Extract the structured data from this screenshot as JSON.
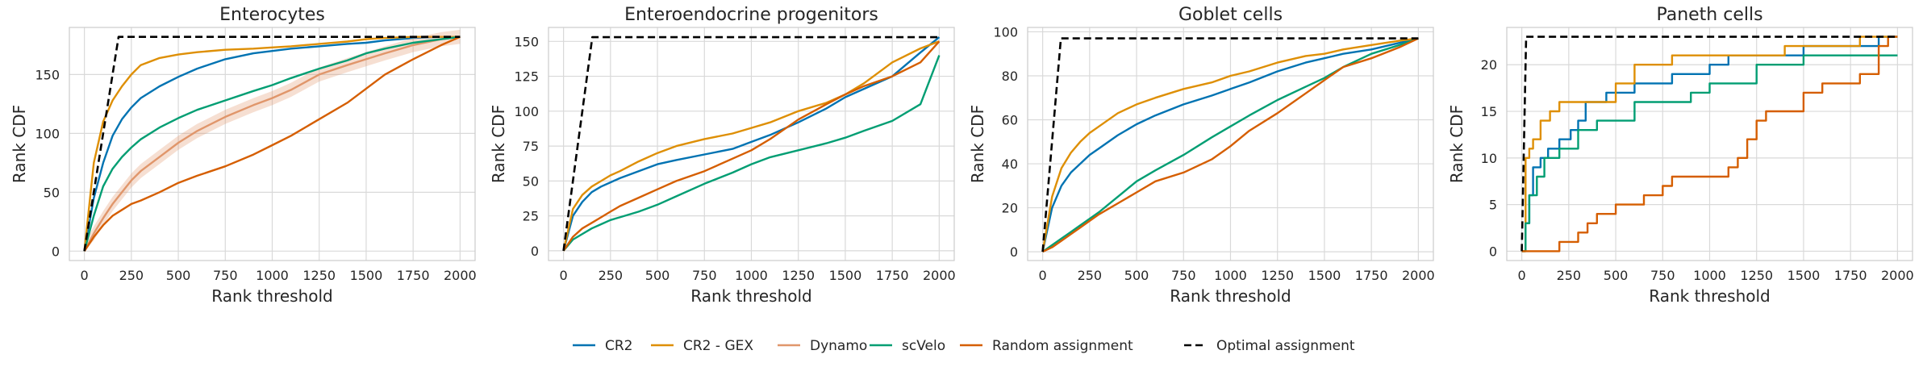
{
  "figure": {
    "xlabel": "Rank threshold",
    "ylabel": "Rank CDF"
  },
  "legend": {
    "placement": "bottom-center",
    "entries": [
      {
        "name": "CR2",
        "color": "#0173b2",
        "dashed": false
      },
      {
        "name": "CR2 - GEX",
        "color": "#de8f05",
        "dashed": false
      },
      {
        "name": "Dynamo",
        "color": "#e0966b",
        "dashed": false
      },
      {
        "name": "scVelo",
        "color": "#029e73",
        "dashed": false
      },
      {
        "name": "Random assignment",
        "color": "#d55e00",
        "dashed": false
      },
      {
        "name": "Optimal assignment",
        "color": "#000000",
        "dashed": true
      }
    ]
  },
  "chart_data": [
    {
      "type": "line",
      "title": "Enterocytes",
      "xlabel": "Rank threshold",
      "ylabel": "Rank CDF",
      "xlim": [
        -80,
        2080
      ],
      "ylim": [
        -8,
        190
      ],
      "xticks": [
        "0",
        "250",
        "500",
        "750",
        "1000",
        "1250",
        "1500",
        "1750",
        "2000"
      ],
      "xtick_values": [
        0,
        250,
        500,
        750,
        1000,
        1250,
        1500,
        1750,
        2000
      ],
      "yticks": [
        "0",
        "50",
        "100",
        "150"
      ],
      "ytick_values": [
        0,
        50,
        100,
        150
      ],
      "grid": true,
      "series": [
        {
          "name": "CR2",
          "color": "#0173b2",
          "dashed": false,
          "x": [
            0,
            50,
            100,
            150,
            200,
            250,
            300,
            400,
            500,
            600,
            750,
            900,
            1000,
            1100,
            1250,
            1400,
            1500,
            1600,
            1750,
            1900,
            2000
          ],
          "y": [
            0,
            45,
            75,
            98,
            112,
            122,
            130,
            140,
            148,
            155,
            163,
            168,
            170,
            172,
            174,
            176,
            177,
            179,
            181,
            182,
            182
          ]
        },
        {
          "name": "CR2 - GEX",
          "color": "#de8f05",
          "dashed": false,
          "x": [
            0,
            50,
            100,
            150,
            200,
            250,
            300,
            400,
            500,
            600,
            750,
            900,
            1000,
            1100,
            1250,
            1400,
            1500,
            1600,
            1750,
            1900,
            2000
          ],
          "y": [
            0,
            75,
            110,
            128,
            140,
            150,
            158,
            164,
            167,
            169,
            171,
            172,
            173,
            174,
            176,
            178,
            180,
            181,
            182,
            182,
            182
          ]
        },
        {
          "name": "Dynamo",
          "color": "#e0966b",
          "dashed": false,
          "x": [
            0,
            50,
            100,
            150,
            200,
            250,
            300,
            400,
            500,
            600,
            750,
            900,
            1000,
            1100,
            1250,
            1400,
            1500,
            1600,
            1750,
            1900,
            2000
          ],
          "y": [
            0,
            15,
            28,
            40,
            50,
            60,
            68,
            80,
            92,
            102,
            114,
            124,
            130,
            137,
            150,
            158,
            163,
            168,
            175,
            180,
            182
          ],
          "band": 6
        },
        {
          "name": "scVelo",
          "color": "#029e73",
          "dashed": false,
          "x": [
            0,
            50,
            100,
            150,
            200,
            250,
            300,
            400,
            500,
            600,
            750,
            900,
            1000,
            1100,
            1250,
            1400,
            1500,
            1600,
            1750,
            1900,
            2000
          ],
          "y": [
            0,
            30,
            55,
            70,
            80,
            88,
            95,
            105,
            113,
            120,
            128,
            136,
            141,
            147,
            155,
            162,
            168,
            172,
            177,
            180,
            182
          ]
        },
        {
          "name": "Random assignment",
          "color": "#d55e00",
          "dashed": false,
          "x": [
            0,
            50,
            100,
            150,
            200,
            250,
            300,
            400,
            500,
            600,
            750,
            900,
            1000,
            1100,
            1250,
            1400,
            1500,
            1600,
            1750,
            1900,
            2000
          ],
          "y": [
            0,
            12,
            22,
            30,
            35,
            40,
            43,
            50,
            58,
            64,
            72,
            82,
            90,
            98,
            112,
            126,
            138,
            150,
            163,
            175,
            182
          ]
        },
        {
          "name": "Optimal assignment",
          "color": "#000000",
          "dashed": true,
          "x": [
            0,
            182,
            2000
          ],
          "y": [
            0,
            182,
            182
          ]
        }
      ]
    },
    {
      "type": "line",
      "title": "Enteroendocrine progenitors",
      "xlabel": "Rank threshold",
      "ylabel": "Rank CDF",
      "xlim": [
        -80,
        2080
      ],
      "ylim": [
        -7,
        160
      ],
      "xticks": [
        "0",
        "250",
        "500",
        "750",
        "1000",
        "1250",
        "1500",
        "1750",
        "2000"
      ],
      "xtick_values": [
        0,
        250,
        500,
        750,
        1000,
        1250,
        1500,
        1750,
        2000
      ],
      "yticks": [
        "0",
        "25",
        "50",
        "75",
        "100",
        "125",
        "150"
      ],
      "ytick_values": [
        0,
        25,
        50,
        75,
        100,
        125,
        150
      ],
      "grid": true,
      "series": [
        {
          "name": "CR2",
          "color": "#0173b2",
          "dashed": false,
          "x": [
            0,
            50,
            100,
            150,
            200,
            250,
            300,
            400,
            500,
            600,
            750,
            900,
            1000,
            1100,
            1250,
            1400,
            1500,
            1600,
            1750,
            1900,
            2000
          ],
          "y": [
            0,
            25,
            35,
            42,
            46,
            49,
            52,
            57,
            62,
            65,
            69,
            73,
            78,
            83,
            92,
            102,
            110,
            116,
            125,
            142,
            153
          ]
        },
        {
          "name": "CR2 - GEX",
          "color": "#de8f05",
          "dashed": false,
          "x": [
            0,
            50,
            100,
            150,
            200,
            250,
            300,
            400,
            500,
            600,
            750,
            900,
            1000,
            1100,
            1250,
            1400,
            1500,
            1600,
            1750,
            1900,
            2000
          ],
          "y": [
            0,
            30,
            40,
            46,
            50,
            54,
            57,
            64,
            70,
            75,
            80,
            84,
            88,
            92,
            100,
            106,
            112,
            120,
            135,
            145,
            150
          ]
        },
        {
          "name": "scVelo",
          "color": "#029e73",
          "dashed": false,
          "x": [
            0,
            50,
            100,
            150,
            200,
            250,
            300,
            400,
            500,
            600,
            750,
            900,
            1000,
            1100,
            1250,
            1400,
            1500,
            1600,
            1750,
            1900,
            2000
          ],
          "y": [
            0,
            8,
            12,
            16,
            19,
            22,
            24,
            28,
            33,
            39,
            48,
            56,
            62,
            67,
            72,
            77,
            81,
            86,
            93,
            105,
            140
          ]
        },
        {
          "name": "Random assignment",
          "color": "#d55e00",
          "dashed": false,
          "x": [
            0,
            50,
            100,
            150,
            200,
            250,
            300,
            400,
            500,
            600,
            750,
            900,
            1000,
            1100,
            1250,
            1400,
            1500,
            1600,
            1750,
            1900,
            2000
          ],
          "y": [
            0,
            10,
            16,
            20,
            24,
            28,
            32,
            38,
            44,
            50,
            57,
            66,
            72,
            80,
            94,
            105,
            112,
            118,
            125,
            135,
            150
          ]
        },
        {
          "name": "Optimal assignment",
          "color": "#000000",
          "dashed": true,
          "x": [
            0,
            153,
            2000
          ],
          "y": [
            0,
            153,
            153
          ]
        }
      ]
    },
    {
      "type": "line",
      "title": "Goblet cells",
      "xlabel": "Rank threshold",
      "ylabel": "Rank CDF",
      "xlim": [
        -80,
        2080
      ],
      "ylim": [
        -4,
        102
      ],
      "xticks": [
        "0",
        "250",
        "500",
        "750",
        "1000",
        "1250",
        "1500",
        "1750",
        "2000"
      ],
      "xtick_values": [
        0,
        250,
        500,
        750,
        1000,
        1250,
        1500,
        1750,
        2000
      ],
      "yticks": [
        "0",
        "20",
        "40",
        "60",
        "80",
        "100"
      ],
      "ytick_values": [
        0,
        20,
        40,
        60,
        80,
        100
      ],
      "grid": true,
      "series": [
        {
          "name": "CR2",
          "color": "#0173b2",
          "dashed": false,
          "x": [
            0,
            50,
            100,
            150,
            200,
            250,
            300,
            400,
            500,
            600,
            750,
            900,
            1000,
            1100,
            1250,
            1400,
            1500,
            1600,
            1750,
            1900,
            2000
          ],
          "y": [
            0,
            20,
            30,
            36,
            40,
            44,
            47,
            53,
            58,
            62,
            67,
            71,
            74,
            77,
            82,
            86,
            88,
            90,
            92,
            95,
            97
          ]
        },
        {
          "name": "CR2 - GEX",
          "color": "#de8f05",
          "dashed": false,
          "x": [
            0,
            50,
            100,
            150,
            200,
            250,
            300,
            400,
            500,
            600,
            750,
            900,
            1000,
            1100,
            1250,
            1400,
            1500,
            1600,
            1750,
            1900,
            2000
          ],
          "y": [
            0,
            25,
            38,
            45,
            50,
            54,
            57,
            63,
            67,
            70,
            74,
            77,
            80,
            82,
            86,
            89,
            90,
            92,
            94,
            96,
            97
          ]
        },
        {
          "name": "scVelo",
          "color": "#029e73",
          "dashed": false,
          "x": [
            0,
            50,
            100,
            150,
            200,
            250,
            300,
            400,
            500,
            600,
            750,
            900,
            1000,
            1100,
            1250,
            1400,
            1500,
            1600,
            1750,
            1900,
            2000
          ],
          "y": [
            0,
            3,
            6,
            9,
            12,
            15,
            18,
            25,
            32,
            37,
            44,
            52,
            57,
            62,
            69,
            75,
            79,
            84,
            90,
            94,
            97
          ]
        },
        {
          "name": "Random assignment",
          "color": "#d55e00",
          "dashed": false,
          "x": [
            0,
            50,
            100,
            150,
            200,
            250,
            300,
            400,
            500,
            600,
            750,
            900,
            1000,
            1100,
            1250,
            1400,
            1500,
            1600,
            1750,
            1900,
            2000
          ],
          "y": [
            0,
            2,
            5,
            8,
            11,
            14,
            17,
            22,
            27,
            32,
            36,
            42,
            48,
            55,
            63,
            72,
            78,
            84,
            88,
            93,
            97
          ]
        },
        {
          "name": "Optimal assignment",
          "color": "#000000",
          "dashed": true,
          "x": [
            0,
            97,
            2000
          ],
          "y": [
            0,
            97,
            97
          ]
        }
      ]
    },
    {
      "type": "line",
      "title": "Paneth cells",
      "xlabel": "Rank threshold",
      "ylabel": "Rank CDF",
      "xlim": [
        -80,
        2080
      ],
      "ylim": [
        -1,
        24
      ],
      "xticks": [
        "0",
        "250",
        "500",
        "750",
        "1000",
        "1250",
        "1500",
        "1750",
        "2000"
      ],
      "xtick_values": [
        0,
        250,
        500,
        750,
        1000,
        1250,
        1500,
        1750,
        2000
      ],
      "yticks": [
        "0",
        "5",
        "10",
        "15",
        "20"
      ],
      "ytick_values": [
        0,
        5,
        10,
        15,
        20
      ],
      "grid": true,
      "series": [
        {
          "name": "CR2",
          "color": "#0173b2",
          "dashed": false,
          "step": true,
          "x": [
            0,
            20,
            40,
            60,
            100,
            140,
            200,
            260,
            300,
            340,
            450,
            600,
            800,
            1000,
            1100,
            1500,
            1700,
            1800,
            1900,
            2000
          ],
          "y": [
            0,
            3,
            6,
            9,
            10,
            11,
            12,
            13,
            14,
            16,
            17,
            18,
            19,
            20,
            21,
            22,
            22,
            22,
            23,
            23
          ]
        },
        {
          "name": "CR2 - GEX",
          "color": "#de8f05",
          "dashed": false,
          "step": true,
          "x": [
            0,
            20,
            40,
            60,
            100,
            150,
            200,
            250,
            300,
            500,
            600,
            800,
            1000,
            1400,
            1700,
            1800,
            1950,
            2000
          ],
          "y": [
            0,
            10,
            11,
            12,
            14,
            15,
            16,
            16,
            16,
            18,
            20,
            21,
            21,
            22,
            22,
            23,
            23,
            23
          ]
        },
        {
          "name": "scVelo",
          "color": "#029e73",
          "dashed": false,
          "step": true,
          "x": [
            0,
            20,
            40,
            80,
            120,
            200,
            300,
            400,
            600,
            900,
            1000,
            1250,
            1500,
            1700,
            1900,
            2000
          ],
          "y": [
            0,
            3,
            6,
            8,
            10,
            11,
            13,
            14,
            16,
            17,
            18,
            20,
            21,
            21,
            21,
            21
          ]
        },
        {
          "name": "Random assignment",
          "color": "#d55e00",
          "dashed": false,
          "step": true,
          "x": [
            0,
            200,
            300,
            350,
            400,
            500,
            650,
            750,
            800,
            1100,
            1150,
            1200,
            1250,
            1300,
            1400,
            1500,
            1600,
            1800,
            1900,
            1950,
            2000
          ],
          "y": [
            0,
            1,
            2,
            3,
            4,
            5,
            6,
            7,
            8,
            9,
            10,
            12,
            14,
            15,
            15,
            17,
            18,
            19,
            22,
            23,
            23
          ]
        },
        {
          "name": "Optimal assignment",
          "color": "#000000",
          "dashed": true,
          "x": [
            0,
            23,
            2000
          ],
          "y": [
            0,
            23,
            23
          ]
        }
      ]
    }
  ]
}
